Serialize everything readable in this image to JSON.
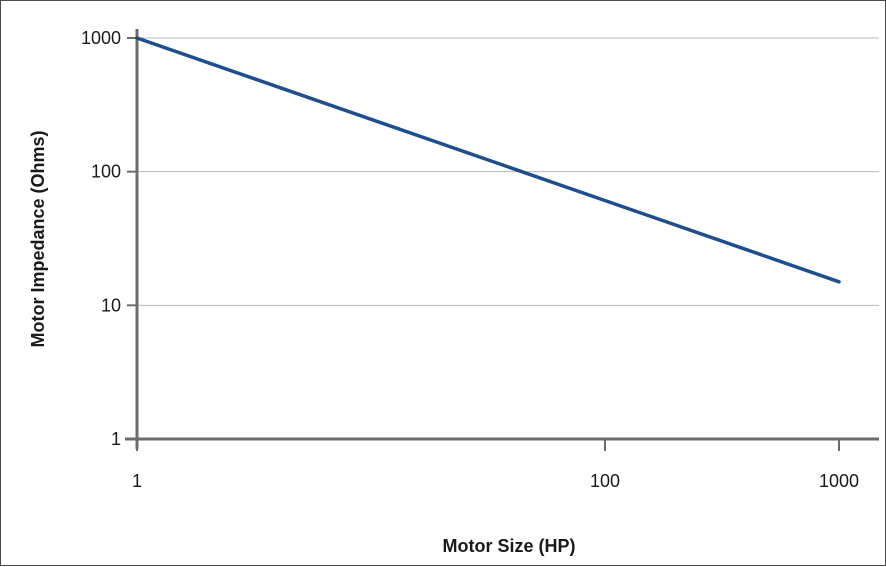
{
  "chart_data": {
    "type": "line",
    "xlabel": "Motor Size (HP)",
    "ylabel": "Motor Impedance (Ohms)",
    "x_scale": "log",
    "y_scale": "log",
    "xlim": [
      1,
      1000
    ],
    "ylim": [
      1,
      1000
    ],
    "x_ticks": [
      "1",
      "100",
      "1000"
    ],
    "x_tick_values": [
      1,
      100,
      1000
    ],
    "y_ticks": [
      "1000",
      "100",
      "10",
      "1"
    ],
    "y_tick_values": [
      1000,
      100,
      10,
      1
    ],
    "grid": "horizontal",
    "legend": "none",
    "series": [
      {
        "color": "#1f4e8c",
        "points": [
          {
            "x": 1,
            "y": 1000
          },
          {
            "x": 1000,
            "y": 15
          }
        ]
      }
    ]
  }
}
